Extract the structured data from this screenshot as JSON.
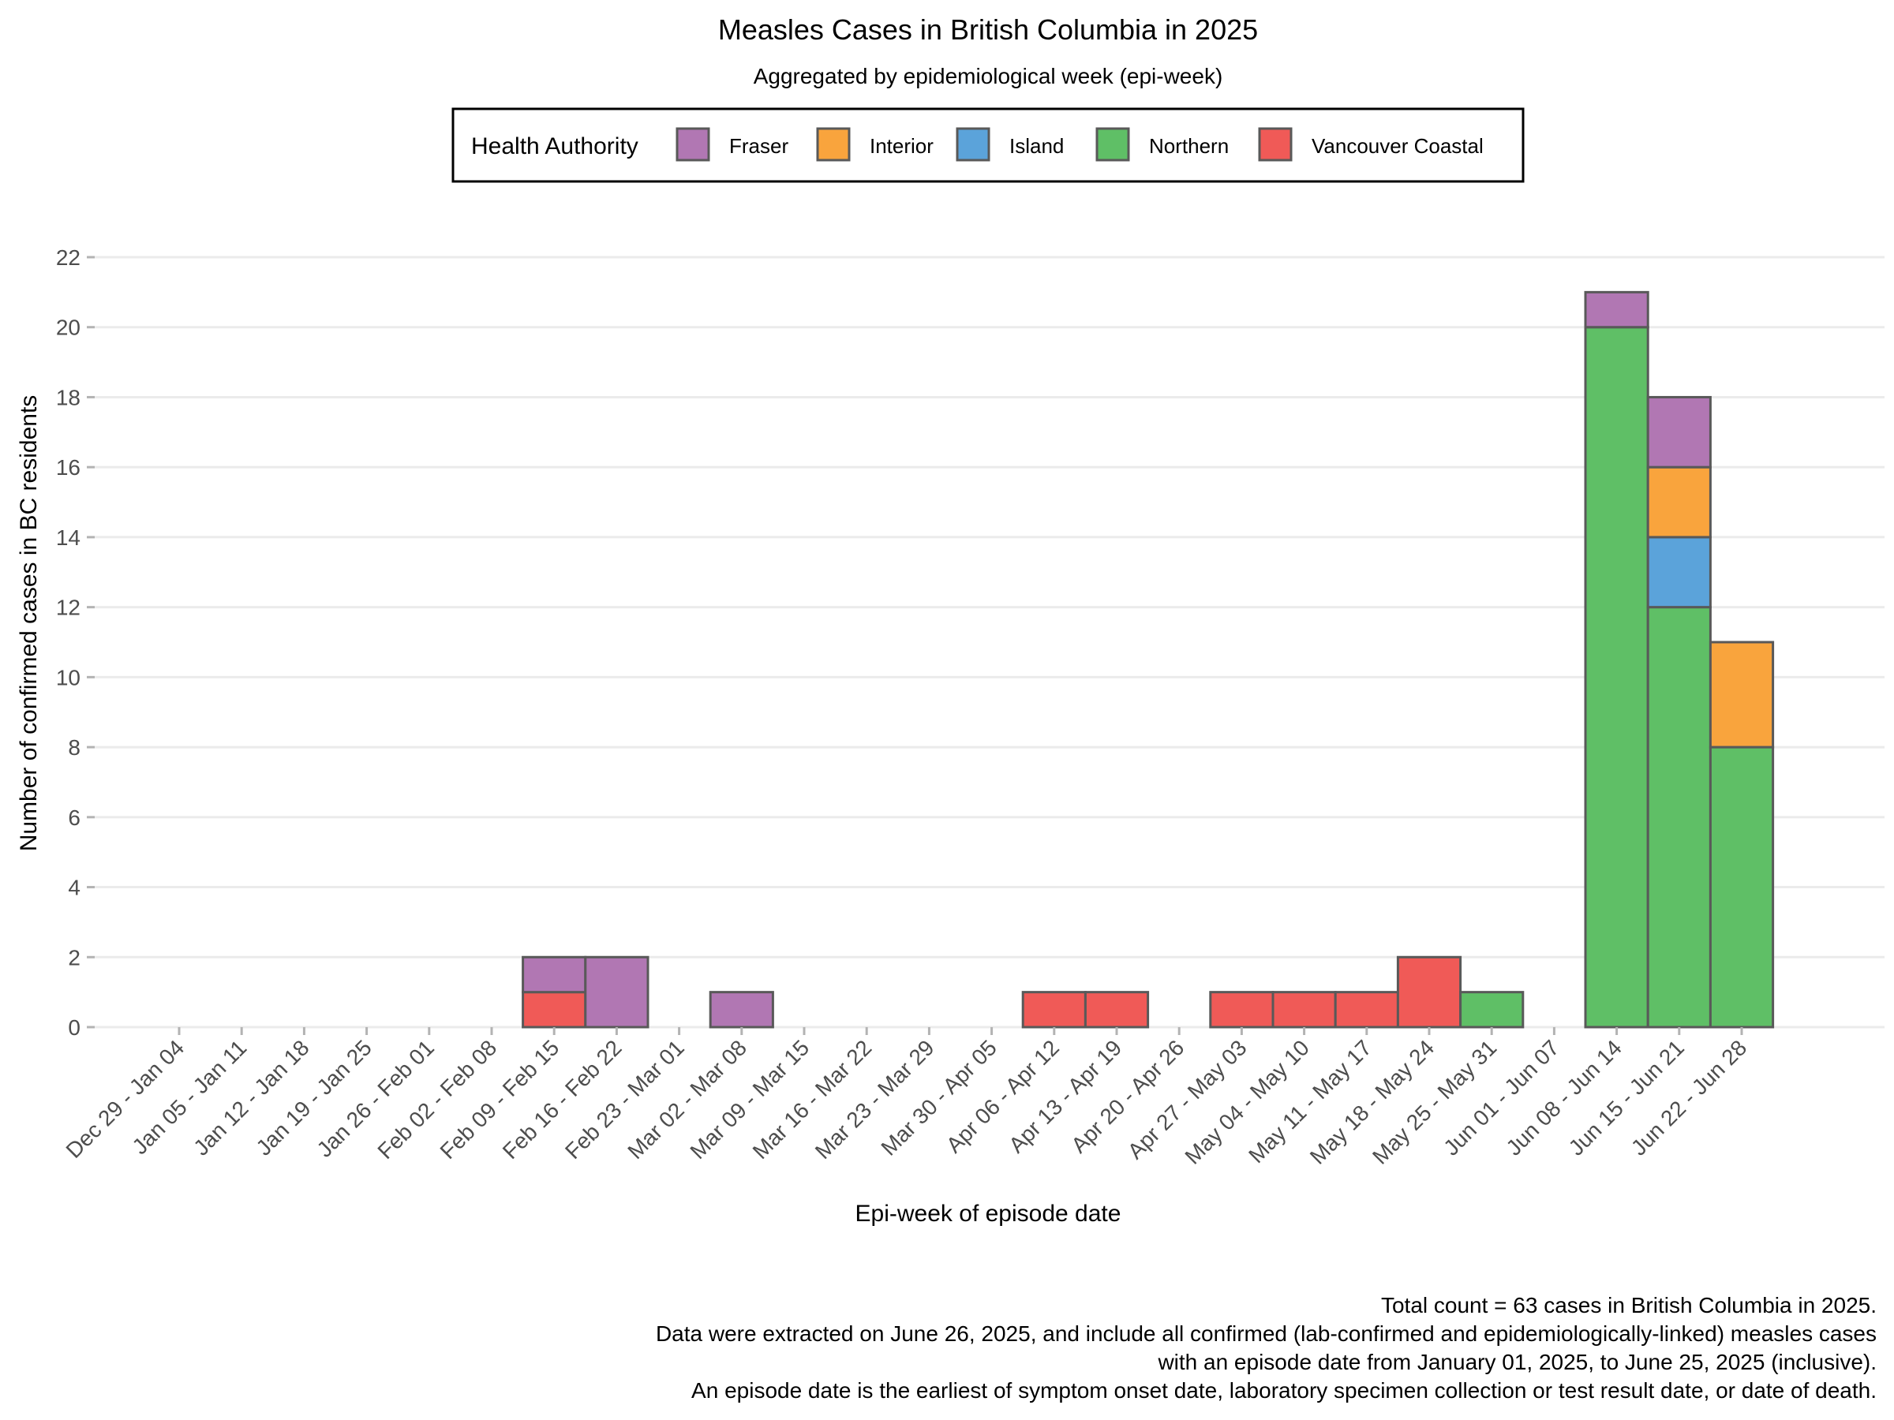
{
  "chart_data": {
    "type": "bar",
    "stacked": true,
    "title": "Measles Cases in British Columbia in 2025",
    "subtitle": "Aggregated by epidemiological week (epi-week)",
    "xlabel": "Epi-week of episode date",
    "ylabel": "Number of confirmed cases in BC residents",
    "ylim": [
      0,
      22
    ],
    "yticks": [
      0,
      2,
      4,
      6,
      8,
      10,
      12,
      14,
      16,
      18,
      20,
      22
    ],
    "grid": "horizontal",
    "legend": {
      "title": "Health Authority",
      "placement": "top",
      "entries": [
        "Fraser",
        "Interior",
        "Island",
        "Northern",
        "Vancouver Coastal"
      ]
    },
    "categories": [
      "Dec 29 - Jan 04",
      "Jan 05 - Jan 11",
      "Jan 12 - Jan 18",
      "Jan 19 - Jan 25",
      "Jan 26 - Feb 01",
      "Feb 02 - Feb 08",
      "Feb 09 - Feb 15",
      "Feb 16 - Feb 22",
      "Feb 23 - Mar 01",
      "Mar 02 - Mar 08",
      "Mar 09 - Mar 15",
      "Mar 16 - Mar 22",
      "Mar 23 - Mar 29",
      "Mar 30 - Apr 05",
      "Apr 06 - Apr 12",
      "Apr 13 - Apr 19",
      "Apr 20 - Apr 26",
      "Apr 27 - May 03",
      "May 04 - May 10",
      "May 11 - May 17",
      "May 18 - May 24",
      "May 25 - May 31",
      "Jun 01 - Jun 07",
      "Jun 08 - Jun 14",
      "Jun 15 - Jun 21",
      "Jun 22 - Jun 28"
    ],
    "series": [
      {
        "name": "Vancouver Coastal",
        "color": "#f05a57",
        "values": [
          0,
          0,
          0,
          0,
          0,
          0,
          1,
          0,
          0,
          0,
          0,
          0,
          0,
          0,
          1,
          1,
          0,
          1,
          1,
          1,
          2,
          0,
          0,
          0,
          0,
          0
        ]
      },
      {
        "name": "Northern",
        "color": "#5fbf66",
        "values": [
          0,
          0,
          0,
          0,
          0,
          0,
          0,
          0,
          0,
          0,
          0,
          0,
          0,
          0,
          0,
          0,
          0,
          0,
          0,
          0,
          0,
          1,
          0,
          20,
          12,
          8
        ]
      },
      {
        "name": "Island",
        "color": "#5ba3da",
        "values": [
          0,
          0,
          0,
          0,
          0,
          0,
          0,
          0,
          0,
          0,
          0,
          0,
          0,
          0,
          0,
          0,
          0,
          0,
          0,
          0,
          0,
          0,
          0,
          0,
          2,
          0
        ]
      },
      {
        "name": "Interior",
        "color": "#f9a43d",
        "values": [
          0,
          0,
          0,
          0,
          0,
          0,
          0,
          0,
          0,
          0,
          0,
          0,
          0,
          0,
          0,
          0,
          0,
          0,
          0,
          0,
          0,
          0,
          0,
          0,
          2,
          3
        ]
      },
      {
        "name": "Fraser",
        "color": "#b177b3",
        "values": [
          0,
          0,
          0,
          0,
          0,
          0,
          1,
          2,
          0,
          1,
          0,
          0,
          0,
          0,
          0,
          0,
          0,
          0,
          0,
          0,
          0,
          0,
          0,
          1,
          2,
          0
        ]
      }
    ],
    "caption": [
      "Total count = 63 cases in British Columbia in 2025.",
      "Data were extracted on June 26, 2025, and include all confirmed (lab-confirmed and epidemiologically-linked) measles cases",
      "with an episode date from January 01, 2025, to June 25, 2025 (inclusive).",
      "An episode date is the earliest of symptom onset date, laboratory specimen collection or test result date, or date of death."
    ]
  }
}
